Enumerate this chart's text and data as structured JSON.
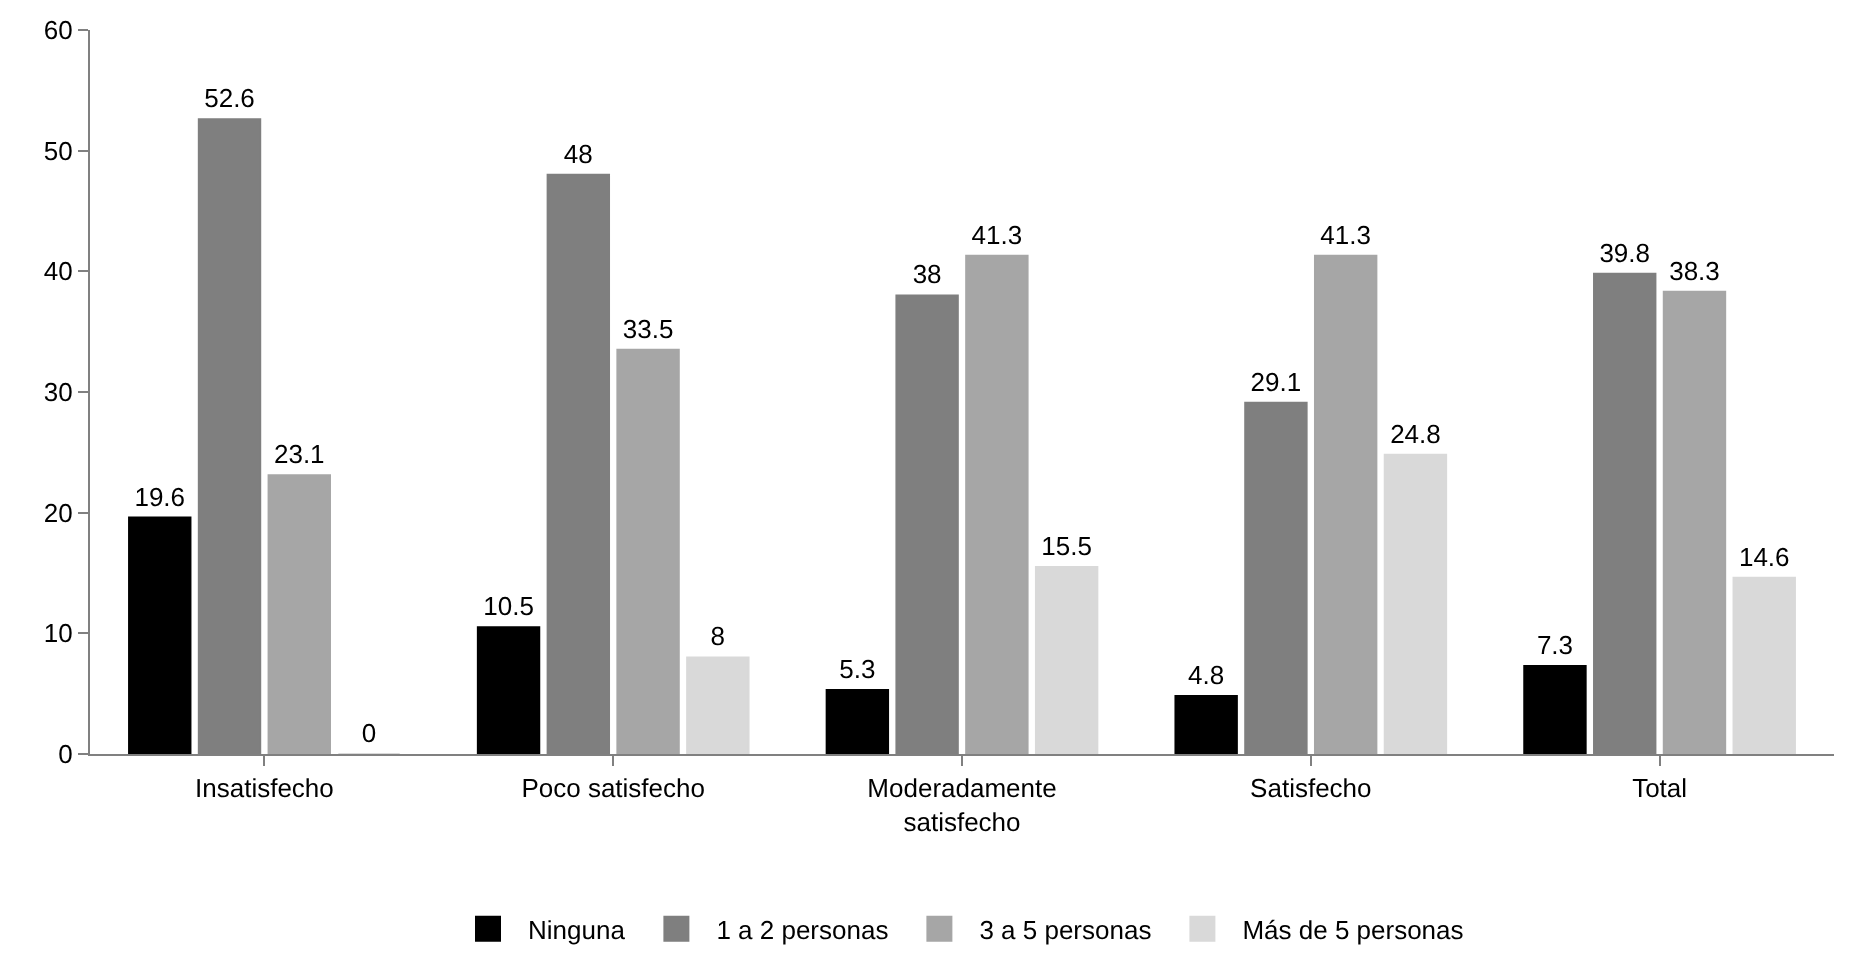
{
  "chart_data": {
    "type": "bar",
    "categories": [
      "Insatisfecho",
      "Poco satisfecho",
      "Moderadamente satisfecho",
      "Satisfecho",
      "Total"
    ],
    "series": [
      {
        "name": "Ninguna",
        "color": "#000000",
        "values": [
          19.6,
          10.5,
          5.3,
          4.8,
          7.3
        ]
      },
      {
        "name": "1 a 2 personas",
        "color": "#7f7f7f",
        "values": [
          52.6,
          48,
          38,
          29.1,
          39.8
        ]
      },
      {
        "name": "3 a 5 personas",
        "color": "#a6a6a6",
        "values": [
          23.1,
          33.5,
          41.3,
          41.3,
          38.3
        ]
      },
      {
        "name": "Más de 5 personas",
        "color": "#d9d9d9",
        "values": [
          0,
          8,
          15.5,
          24.8,
          14.6
        ]
      }
    ],
    "ylim": [
      0,
      60
    ],
    "yticks": [
      0,
      10,
      20,
      30,
      40,
      50,
      60
    ],
    "grid": false,
    "legend": "bottom",
    "data_labels": true
  }
}
